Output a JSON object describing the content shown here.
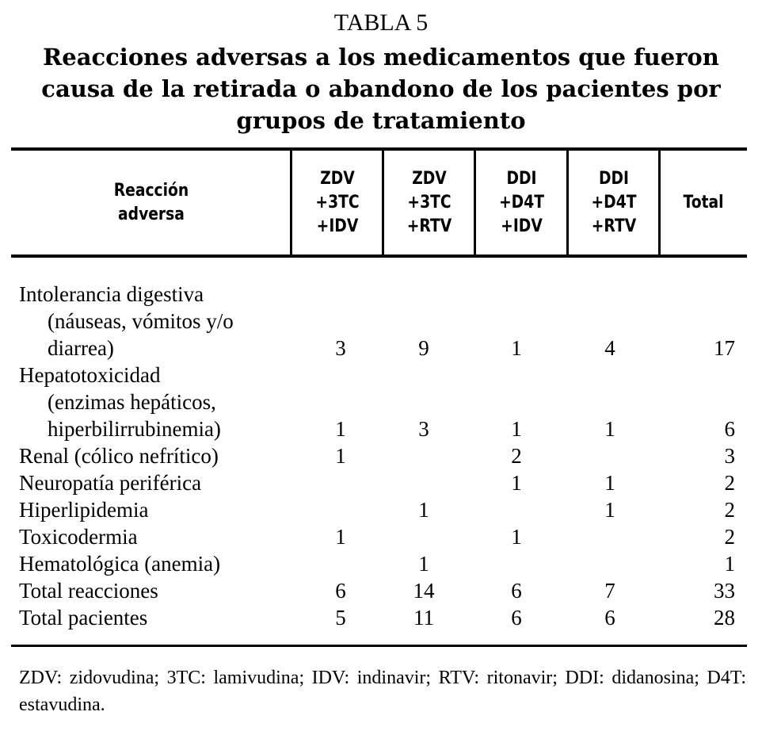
{
  "title": "TABLA 5",
  "subtitle": "Reacciones adversas a los medicamentos que fueron causa de la retirada o abandono de los pacientes por grupos de tratamiento",
  "headers": [
    "Reacción adversa",
    "ZDV +3TC +IDV",
    "ZDV +3TC +RTV",
    "DDI +D4T +IDV",
    "DDI +D4T +RTV",
    "Total"
  ],
  "headers_lines": [
    [
      "Reacción",
      "adversa"
    ],
    [
      "ZDV",
      "+3TC",
      "+IDV"
    ],
    [
      "ZDV",
      "+3TC",
      "+RTV"
    ],
    [
      "DDI",
      "+D4T",
      "+IDV"
    ],
    [
      "DDI",
      "+D4T",
      "+RTV"
    ],
    [
      "Total"
    ]
  ],
  "rows": [
    {
      "label": [
        "Intolerancia digestiva",
        "(náuseas, vómitos y/o",
        "diarrea)"
      ],
      "values": [
        "3",
        "9",
        "1",
        "4"
      ],
      "total": "17"
    },
    {
      "label": [
        "Hepatotoxicidad",
        "(enzimas hepáticos,",
        "hiperbilirrubinemia)"
      ],
      "values": [
        "1",
        "3",
        "1",
        "1"
      ],
      "total": "6"
    },
    {
      "label": [
        "Renal (cólico nefrítico)"
      ],
      "values": [
        "1",
        "",
        "2",
        ""
      ],
      "total": "3"
    },
    {
      "label": [
        "Neuropatía periférica"
      ],
      "values": [
        "",
        "",
        "1",
        "1"
      ],
      "total": "2"
    },
    {
      "label": [
        "Hiperlipidemia"
      ],
      "values": [
        "",
        "1",
        "",
        "1"
      ],
      "total": "2"
    },
    {
      "label": [
        "Toxicodermia"
      ],
      "values": [
        "1",
        "",
        "1",
        ""
      ],
      "total": "2"
    },
    {
      "label": [
        "Hematológica (anemia)"
      ],
      "values": [
        "",
        "1",
        "",
        ""
      ],
      "total": "1"
    },
    {
      "label": [
        "Total reacciones"
      ],
      "values": [
        "6",
        "14",
        "6",
        "7"
      ],
      "total": "33"
    },
    {
      "label": [
        "Total pacientes"
      ],
      "values": [
        "5",
        "11",
        "6",
        "6"
      ],
      "total": "28"
    }
  ],
  "footnote": "ZDV: zidovudina; 3TC: lamivudina; IDV: indinavir; RTV: ritonavir; DDI: didanosina; D4T: estavudina."
}
